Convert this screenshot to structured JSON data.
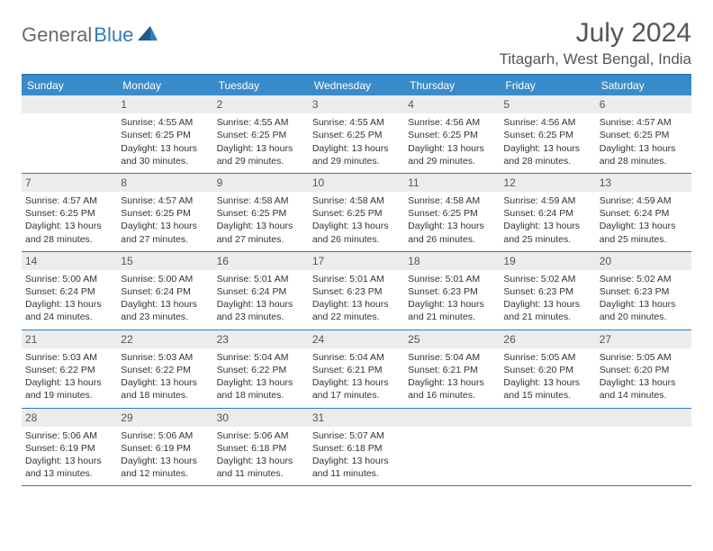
{
  "logo": {
    "text1": "General",
    "text2": "Blue"
  },
  "title": "July 2024",
  "location": "Titagarh, West Bengal, India",
  "colors": {
    "header_blue": "#3a8bc9",
    "border_blue": "#2f7bbf",
    "daynum_bg": "#ececec",
    "text": "#333333",
    "logo_gray": "#6a6a6a"
  },
  "weekdays": [
    "Sunday",
    "Monday",
    "Tuesday",
    "Wednesday",
    "Thursday",
    "Friday",
    "Saturday"
  ],
  "weeks": [
    [
      null,
      {
        "n": "1",
        "sr": "Sunrise: 4:55 AM",
        "ss": "Sunset: 6:25 PM",
        "d1": "Daylight: 13 hours",
        "d2": "and 30 minutes."
      },
      {
        "n": "2",
        "sr": "Sunrise: 4:55 AM",
        "ss": "Sunset: 6:25 PM",
        "d1": "Daylight: 13 hours",
        "d2": "and 29 minutes."
      },
      {
        "n": "3",
        "sr": "Sunrise: 4:55 AM",
        "ss": "Sunset: 6:25 PM",
        "d1": "Daylight: 13 hours",
        "d2": "and 29 minutes."
      },
      {
        "n": "4",
        "sr": "Sunrise: 4:56 AM",
        "ss": "Sunset: 6:25 PM",
        "d1": "Daylight: 13 hours",
        "d2": "and 29 minutes."
      },
      {
        "n": "5",
        "sr": "Sunrise: 4:56 AM",
        "ss": "Sunset: 6:25 PM",
        "d1": "Daylight: 13 hours",
        "d2": "and 28 minutes."
      },
      {
        "n": "6",
        "sr": "Sunrise: 4:57 AM",
        "ss": "Sunset: 6:25 PM",
        "d1": "Daylight: 13 hours",
        "d2": "and 28 minutes."
      }
    ],
    [
      {
        "n": "7",
        "sr": "Sunrise: 4:57 AM",
        "ss": "Sunset: 6:25 PM",
        "d1": "Daylight: 13 hours",
        "d2": "and 28 minutes."
      },
      {
        "n": "8",
        "sr": "Sunrise: 4:57 AM",
        "ss": "Sunset: 6:25 PM",
        "d1": "Daylight: 13 hours",
        "d2": "and 27 minutes."
      },
      {
        "n": "9",
        "sr": "Sunrise: 4:58 AM",
        "ss": "Sunset: 6:25 PM",
        "d1": "Daylight: 13 hours",
        "d2": "and 27 minutes."
      },
      {
        "n": "10",
        "sr": "Sunrise: 4:58 AM",
        "ss": "Sunset: 6:25 PM",
        "d1": "Daylight: 13 hours",
        "d2": "and 26 minutes."
      },
      {
        "n": "11",
        "sr": "Sunrise: 4:58 AM",
        "ss": "Sunset: 6:25 PM",
        "d1": "Daylight: 13 hours",
        "d2": "and 26 minutes."
      },
      {
        "n": "12",
        "sr": "Sunrise: 4:59 AM",
        "ss": "Sunset: 6:24 PM",
        "d1": "Daylight: 13 hours",
        "d2": "and 25 minutes."
      },
      {
        "n": "13",
        "sr": "Sunrise: 4:59 AM",
        "ss": "Sunset: 6:24 PM",
        "d1": "Daylight: 13 hours",
        "d2": "and 25 minutes."
      }
    ],
    [
      {
        "n": "14",
        "sr": "Sunrise: 5:00 AM",
        "ss": "Sunset: 6:24 PM",
        "d1": "Daylight: 13 hours",
        "d2": "and 24 minutes."
      },
      {
        "n": "15",
        "sr": "Sunrise: 5:00 AM",
        "ss": "Sunset: 6:24 PM",
        "d1": "Daylight: 13 hours",
        "d2": "and 23 minutes."
      },
      {
        "n": "16",
        "sr": "Sunrise: 5:01 AM",
        "ss": "Sunset: 6:24 PM",
        "d1": "Daylight: 13 hours",
        "d2": "and 23 minutes."
      },
      {
        "n": "17",
        "sr": "Sunrise: 5:01 AM",
        "ss": "Sunset: 6:23 PM",
        "d1": "Daylight: 13 hours",
        "d2": "and 22 minutes."
      },
      {
        "n": "18",
        "sr": "Sunrise: 5:01 AM",
        "ss": "Sunset: 6:23 PM",
        "d1": "Daylight: 13 hours",
        "d2": "and 21 minutes."
      },
      {
        "n": "19",
        "sr": "Sunrise: 5:02 AM",
        "ss": "Sunset: 6:23 PM",
        "d1": "Daylight: 13 hours",
        "d2": "and 21 minutes."
      },
      {
        "n": "20",
        "sr": "Sunrise: 5:02 AM",
        "ss": "Sunset: 6:23 PM",
        "d1": "Daylight: 13 hours",
        "d2": "and 20 minutes."
      }
    ],
    [
      {
        "n": "21",
        "sr": "Sunrise: 5:03 AM",
        "ss": "Sunset: 6:22 PM",
        "d1": "Daylight: 13 hours",
        "d2": "and 19 minutes."
      },
      {
        "n": "22",
        "sr": "Sunrise: 5:03 AM",
        "ss": "Sunset: 6:22 PM",
        "d1": "Daylight: 13 hours",
        "d2": "and 18 minutes."
      },
      {
        "n": "23",
        "sr": "Sunrise: 5:04 AM",
        "ss": "Sunset: 6:22 PM",
        "d1": "Daylight: 13 hours",
        "d2": "and 18 minutes."
      },
      {
        "n": "24",
        "sr": "Sunrise: 5:04 AM",
        "ss": "Sunset: 6:21 PM",
        "d1": "Daylight: 13 hours",
        "d2": "and 17 minutes."
      },
      {
        "n": "25",
        "sr": "Sunrise: 5:04 AM",
        "ss": "Sunset: 6:21 PM",
        "d1": "Daylight: 13 hours",
        "d2": "and 16 minutes."
      },
      {
        "n": "26",
        "sr": "Sunrise: 5:05 AM",
        "ss": "Sunset: 6:20 PM",
        "d1": "Daylight: 13 hours",
        "d2": "and 15 minutes."
      },
      {
        "n": "27",
        "sr": "Sunrise: 5:05 AM",
        "ss": "Sunset: 6:20 PM",
        "d1": "Daylight: 13 hours",
        "d2": "and 14 minutes."
      }
    ],
    [
      {
        "n": "28",
        "sr": "Sunrise: 5:06 AM",
        "ss": "Sunset: 6:19 PM",
        "d1": "Daylight: 13 hours",
        "d2": "and 13 minutes."
      },
      {
        "n": "29",
        "sr": "Sunrise: 5:06 AM",
        "ss": "Sunset: 6:19 PM",
        "d1": "Daylight: 13 hours",
        "d2": "and 12 minutes."
      },
      {
        "n": "30",
        "sr": "Sunrise: 5:06 AM",
        "ss": "Sunset: 6:18 PM",
        "d1": "Daylight: 13 hours",
        "d2": "and 11 minutes."
      },
      {
        "n": "31",
        "sr": "Sunrise: 5:07 AM",
        "ss": "Sunset: 6:18 PM",
        "d1": "Daylight: 13 hours",
        "d2": "and 11 minutes."
      },
      null,
      null,
      null
    ]
  ]
}
